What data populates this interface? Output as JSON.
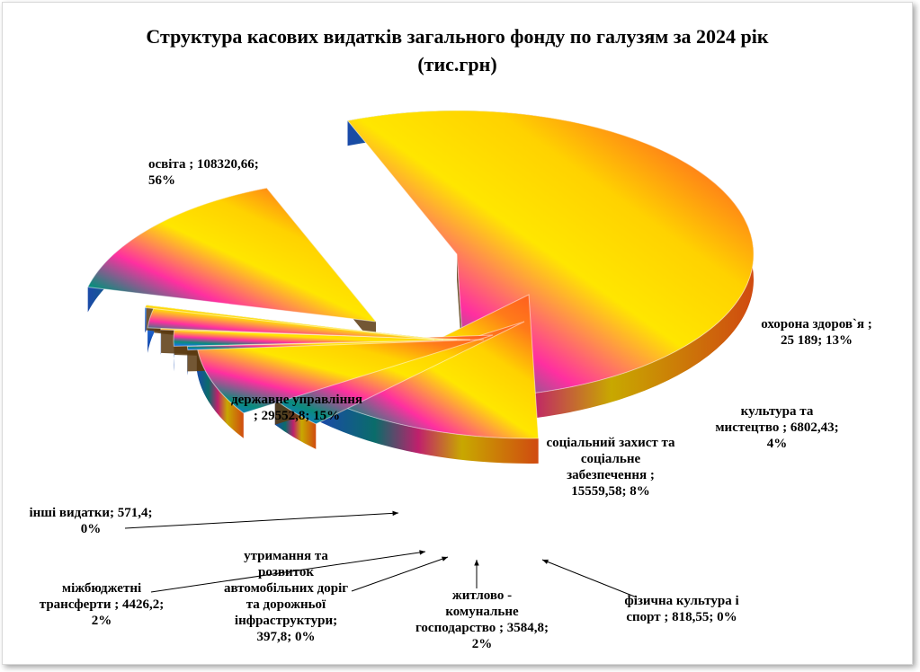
{
  "chart_data": {
    "type": "pie",
    "title": "Структура  касових видатків загального фонду по галузям за 2024 рік",
    "subtitle": "(тис.грн)",
    "labels": [
      "освіта",
      "охорона здоров`я",
      "культура та мистецтво",
      "соціальний захист та соціальне забезпечення",
      "фізична культура і спорт",
      "житлово - комунальне господарство",
      "утримання та розвиток автомобільних доріг та дорожньої інфраструктури",
      "міжбюджетні трансферти",
      "інші видатки",
      "державне управління"
    ],
    "values": [
      108320.66,
      25189,
      6802.43,
      15559.58,
      818.55,
      3584.8,
      397.8,
      4426.2,
      571.4,
      29552.8
    ],
    "value_texts": [
      "108320,66",
      "25 189",
      "6802,43",
      "15559,58",
      "818,55",
      "3584,8",
      "397,8",
      "4426,2",
      "571,4",
      "29552,8"
    ],
    "percent_texts": [
      "56%",
      "13%",
      "4%",
      "8%",
      "0%",
      "2%",
      "0%",
      "2%",
      "0%",
      "15%"
    ],
    "label_lines": [
      [
        "освіта ; 108320,66;",
        "56%"
      ],
      [
        "охорона здоров`я ;",
        "25 189; 13%"
      ],
      [
        "культура та",
        "мистецтво ; 6802,43;",
        "4%"
      ],
      [
        "соціальний захист та",
        "соціальне",
        "забезпечення ;",
        "15559,58; 8%"
      ],
      [
        "фізична культура і",
        "спорт ; 818,55; 0%"
      ],
      [
        "житлово -",
        "комунальне",
        "господарство ; 3584,8;",
        "2%"
      ],
      [
        "утримання та",
        "розвиток",
        "автомобільних доріг",
        "та дорожньої",
        "інфраструктури;",
        "397,8; 0%"
      ],
      [
        "міжбюджетні",
        "трансферти ; 4426,2;",
        "2%"
      ],
      [
        "інші видатки; 571,4;",
        "0%"
      ],
      [
        "державне управління",
        "; 29552,8; 15%"
      ]
    ],
    "style": "3D exploded pie with rainbow gradient fill",
    "colors": [
      "#ff6a1a",
      "#ffe600",
      "#ff2fa0",
      "#0a8c7c",
      "#1e7cff",
      "#123a8c"
    ]
  }
}
